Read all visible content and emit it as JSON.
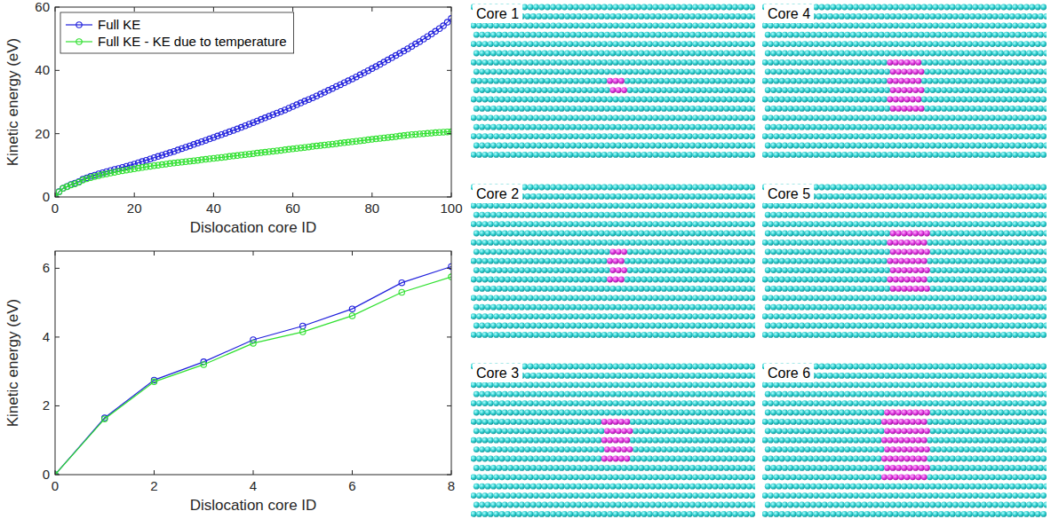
{
  "chart_data": [
    {
      "type": "line",
      "xlabel": "Dislocation core ID",
      "ylabel": "Kinetic energy (eV)",
      "x": [
        0,
        1,
        2,
        3,
        4,
        5,
        6,
        7,
        8,
        9,
        10,
        11,
        12,
        13,
        14,
        15,
        16,
        17,
        18,
        19,
        20,
        21,
        22,
        23,
        24,
        25,
        26,
        27,
        28,
        29,
        30,
        31,
        32,
        33,
        34,
        35,
        36,
        37,
        38,
        39,
        40,
        41,
        42,
        43,
        44,
        45,
        46,
        47,
        48,
        49,
        50,
        51,
        52,
        53,
        54,
        55,
        56,
        57,
        58,
        59,
        60,
        61,
        62,
        63,
        64,
        65,
        66,
        67,
        68,
        69,
        70,
        71,
        72,
        73,
        74,
        75,
        76,
        77,
        78,
        79,
        80,
        81,
        82,
        83,
        84,
        85,
        86,
        87,
        88,
        89,
        90,
        91,
        92,
        93,
        94,
        95,
        96,
        97,
        98,
        99,
        100
      ],
      "series": [
        {
          "name": "Full KE",
          "color": "#1f1fdc",
          "marker": "circle",
          "line_style": "solid",
          "values": [
            0,
            1.65,
            2.75,
            3.28,
            3.92,
            4.32,
            4.82,
            5.58,
            6.05,
            6.5,
            6.9,
            7.3,
            7.65,
            8.0,
            8.35,
            8.7,
            9.0,
            9.35,
            9.7,
            10.05,
            10.4,
            10.8,
            11.2,
            11.6,
            12.0,
            12.4,
            12.8,
            13.2,
            13.6,
            14.0,
            14.4,
            14.85,
            15.3,
            15.7,
            16.15,
            16.6,
            17.0,
            17.45,
            17.9,
            18.35,
            18.8,
            19.25,
            19.7,
            20.15,
            20.6,
            21.05,
            21.5,
            22.0,
            22.5,
            23.0,
            23.5,
            24.0,
            24.5,
            25.0,
            25.5,
            26.0,
            26.5,
            27.0,
            27.5,
            28.05,
            28.6,
            29.15,
            29.7,
            30.25,
            30.8,
            31.35,
            31.9,
            32.5,
            33.1,
            33.7,
            34.3,
            34.9,
            35.5,
            36.1,
            36.7,
            37.3,
            37.95,
            38.6,
            39.25,
            39.9,
            40.55,
            41.2,
            41.9,
            42.6,
            43.3,
            44.0,
            44.7,
            45.4,
            46.1,
            46.85,
            47.6,
            48.35,
            49.1,
            49.9,
            50.7,
            51.5,
            52.35,
            53.2,
            54.1,
            55.2,
            56.4
          ]
        },
        {
          "name": "Full KE - KE due to temperature",
          "color": "#2fe02f",
          "marker": "circle",
          "line_style": "solid",
          "values": [
            0,
            1.62,
            2.7,
            3.2,
            3.82,
            4.15,
            4.62,
            5.3,
            5.75,
            6.1,
            6.45,
            6.75,
            7.05,
            7.3,
            7.55,
            7.8,
            8.05,
            8.3,
            8.5,
            8.7,
            8.9,
            9.1,
            9.3,
            9.5,
            9.7,
            9.9,
            10.05,
            10.2,
            10.4,
            10.55,
            10.7,
            10.85,
            11.0,
            11.15,
            11.3,
            11.45,
            11.6,
            11.75,
            11.9,
            12.05,
            12.2,
            12.35,
            12.5,
            12.65,
            12.8,
            12.95,
            13.1,
            13.25,
            13.4,
            13.55,
            13.7,
            13.85,
            14.0,
            14.15,
            14.3,
            14.45,
            14.6,
            14.75,
            14.9,
            15.05,
            15.2,
            15.35,
            15.5,
            15.65,
            15.8,
            15.95,
            16.1,
            16.25,
            16.4,
            16.55,
            16.7,
            16.85,
            17.0,
            17.15,
            17.3,
            17.45,
            17.6,
            17.75,
            17.9,
            18.05,
            18.2,
            18.35,
            18.5,
            18.65,
            18.8,
            18.95,
            19.1,
            19.25,
            19.4,
            19.55,
            19.7,
            19.8,
            19.9,
            20.0,
            20.1,
            20.2,
            20.3,
            20.4,
            20.5,
            20.55,
            20.6
          ]
        }
      ],
      "xlim": [
        0,
        100
      ],
      "ylim": [
        0,
        60
      ],
      "xticks": [
        0,
        20,
        40,
        60,
        80,
        100
      ],
      "yticks": [
        0,
        20,
        40,
        60
      ],
      "grid": false,
      "legend": "upper left"
    },
    {
      "type": "line",
      "xlabel": "Dislocation core ID",
      "ylabel": "Kinetic energy (eV)",
      "x": [
        0,
        1,
        2,
        3,
        4,
        5,
        6,
        7,
        8
      ],
      "series": [
        {
          "color": "#1f1fdc",
          "marker": "circle",
          "line_style": "solid",
          "values": [
            0,
            1.65,
            2.75,
            3.28,
            3.92,
            4.32,
            4.82,
            5.58,
            6.05
          ]
        },
        {
          "color": "#2fe02f",
          "marker": "circle",
          "line_style": "solid",
          "values": [
            0,
            1.62,
            2.7,
            3.2,
            3.82,
            4.15,
            4.62,
            5.3,
            5.75
          ]
        }
      ],
      "xlim": [
        0,
        8
      ],
      "ylim": [
        0,
        6.5
      ],
      "xticks": [
        0,
        2,
        4,
        6,
        8
      ],
      "yticks": [
        0,
        2,
        4,
        6
      ],
      "grid": false
    }
  ],
  "images": [
    {
      "label": "Core 1",
      "core_rows": 2,
      "core_cols": 3
    },
    {
      "label": "Core 2",
      "core_rows": 4,
      "core_cols": 3
    },
    {
      "label": "Core 3",
      "core_rows": 5,
      "core_cols": 5
    },
    {
      "label": "Core 4",
      "core_rows": 6,
      "core_cols": 6
    },
    {
      "label": "Core 5",
      "core_rows": 7,
      "core_cols": 7
    },
    {
      "label": "Core 6",
      "core_rows": 8,
      "core_cols": 8
    }
  ]
}
